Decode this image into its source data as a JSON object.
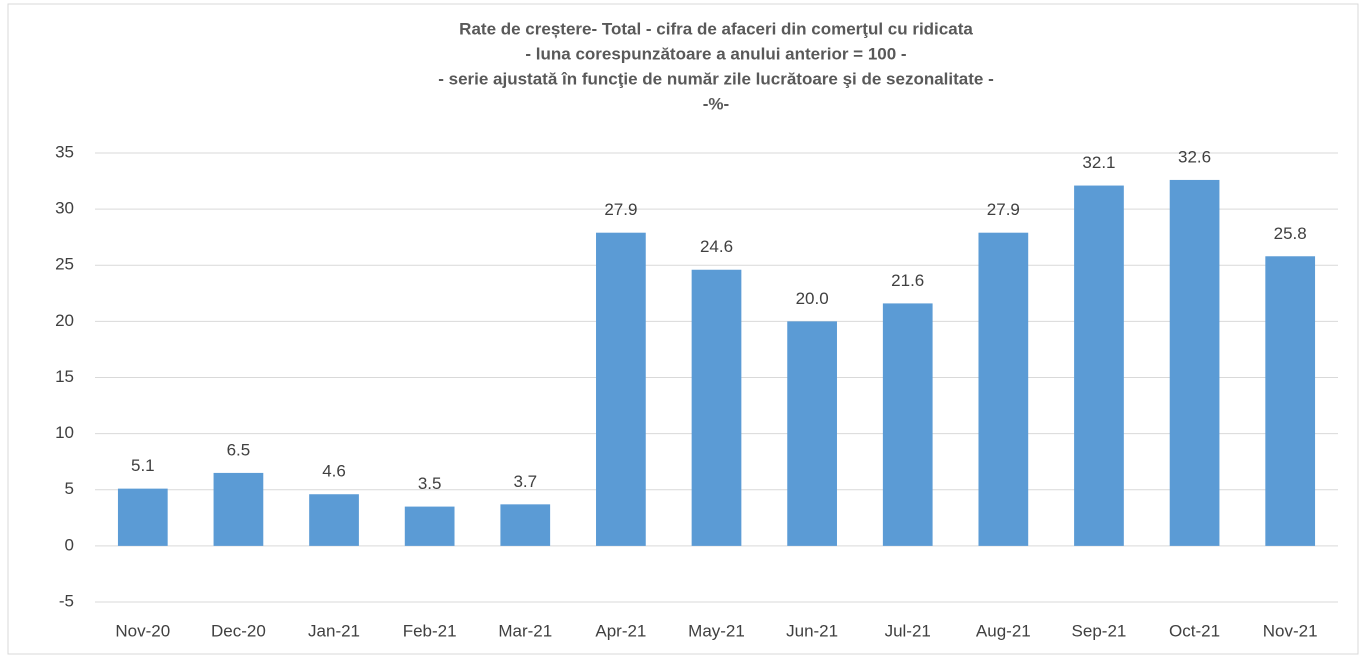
{
  "chart_data": {
    "type": "bar",
    "title": [
      "Rate de creștere- Total - cifra de afaceri din comerţul cu ridicata",
      "- luna corespunzătoare a anului anterior = 100 -",
      "- serie ajustată în funcţie de număr zile lucrătoare şi de sezonalitate -",
      "-%-"
    ],
    "categories": [
      "Nov-20",
      "Dec-20",
      "Jan-21",
      "Feb-21",
      "Mar-21",
      "Apr-21",
      "May-21",
      "Jun-21",
      "Jul-21",
      "Aug-21",
      "Sep-21",
      "Oct-21",
      "Nov-21"
    ],
    "values": [
      5.1,
      6.5,
      4.6,
      3.5,
      3.7,
      27.9,
      24.6,
      20.0,
      21.6,
      27.9,
      32.1,
      32.6,
      25.8
    ],
    "value_labels": [
      "5.1",
      "6.5",
      "4.6",
      "3.5",
      "3.7",
      "27.9",
      "24.6",
      "20.0",
      "21.6",
      "27.9",
      "32.1",
      "32.6",
      "25.8"
    ],
    "color": "#5b9bd5",
    "ylim": [
      -5,
      35
    ],
    "yticks": [
      -5,
      0,
      5,
      10,
      15,
      20,
      25,
      30,
      35
    ],
    "grid": true
  }
}
